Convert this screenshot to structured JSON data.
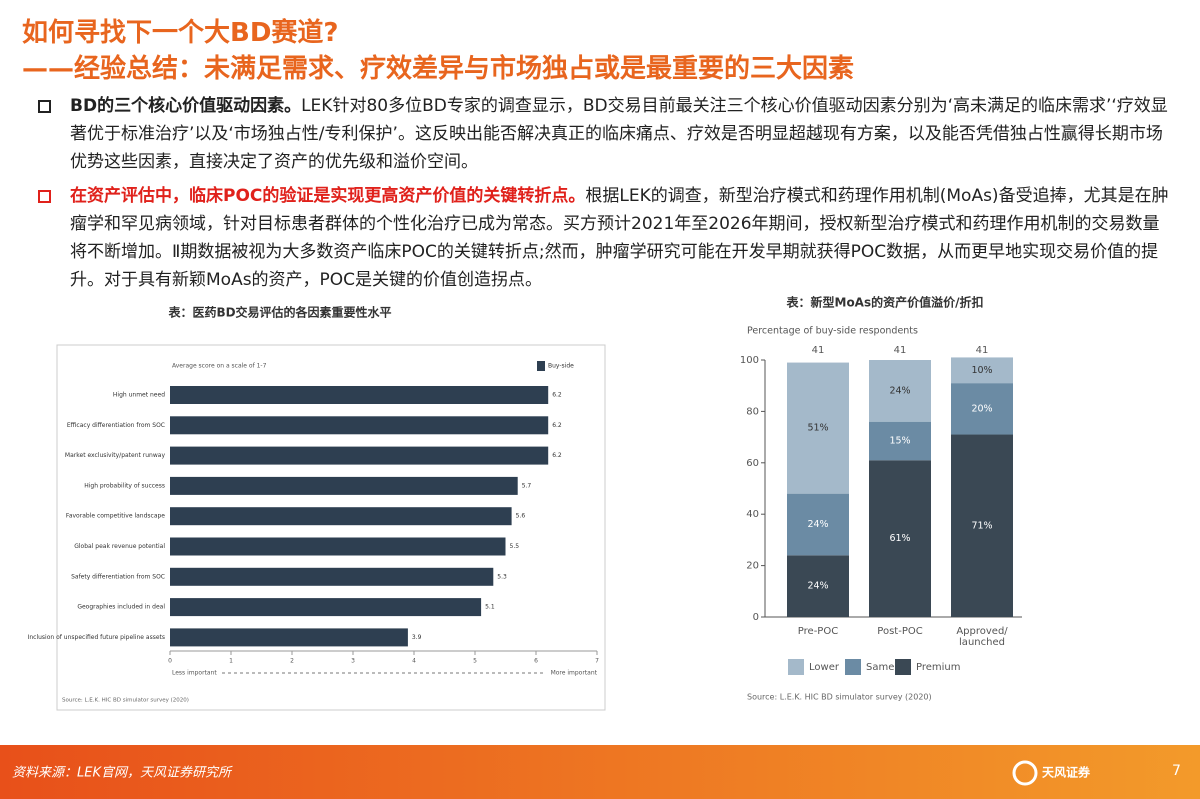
{
  "header": {
    "title": "如何寻找下一个大BD赛道?",
    "subtitle": "——经验总结：未满足需求、疗效差异与市场独占或是最重要的三大因素"
  },
  "bullets": [
    {
      "lead": "BD的三个核心价值驱动因素。",
      "text": "LEK针对80多位BD专家的调查显示，BD交易目前最关注三个核心价值驱动因素分别为‘高未满足的临床需求’‘疗效显著优于标准治疗’以及‘市场独占性/专利保护’。这反映出能否解决真正的临床痛点、疗效是否明显超越现有方案，以及能否凭借独占性赢得长期市场优势这些因素，直接决定了资产的优先级和溢价空间。"
    },
    {
      "lead": "在资产评估中，临床POC的验证是实现更高资产价值的关键转折点。",
      "text": "根据LEK的调查，新型治疗模式和药理作用机制(MoAs)备受追捧，尤其是在肿瘤学和罕见病领域，针对目标患者群体的个性化治疗已成为常态。买方预计2021年至2026年期间，授权新型治疗模式和药理作用机制的交易数量将不断增加。Ⅱ期数据被视为大多数资产临床POC的关键转折点;然而，肿瘤学研究可能在开发早期就获得POC数据，从而更早地实现交易价值的提升。对于具有新颖MoAs的资产，POC是关键的价值创造拐点。"
    }
  ],
  "chart_data": [
    {
      "type": "bar",
      "title": "表：医药BD交易评估的各因素重要性水平",
      "subtitle": "Average score on a scale of 1-7",
      "categories": [
        "High unmet need",
        "Efficacy differentiation from SOC",
        "Market exclusivity/patent runway",
        "High probability of success",
        "Favorable competitive landscape",
        "Global peak revenue potential",
        "Safety differentiation from SOC",
        "Geographies included in deal",
        "Inclusion of unspecified future pipeline assets"
      ],
      "series": [
        {
          "name": "Buy-side",
          "color": "#2e3f51",
          "values": [
            6.2,
            6.2,
            6.2,
            5.7,
            5.6,
            5.5,
            5.3,
            5.1,
            3.9
          ]
        }
      ],
      "xlim": [
        0,
        7
      ],
      "xticks": [
        0,
        1,
        2,
        3,
        4,
        5,
        6,
        7
      ],
      "x_label_left": "Less important",
      "x_label_right": "More important",
      "source": "Source: L.E.K. HIC BD simulator survey (2020)"
    },
    {
      "type": "stacked_bar",
      "title": "表：新型MoAs的资产价值溢价/折扣",
      "y_label": "Percentage of buy-side respondents",
      "categories": [
        "Pre-POC",
        "Post-POC",
        "Approved/ launched"
      ],
      "respondents": [
        41,
        41,
        41
      ],
      "series": [
        {
          "name": "Premium",
          "color": "#3a4854",
          "values": [
            24,
            61,
            71
          ],
          "value_labels": [
            "24%",
            "61%",
            "71%"
          ]
        },
        {
          "name": "Same",
          "color": "#6b8ba4",
          "values": [
            24,
            15,
            20
          ],
          "value_labels": [
            "24%",
            "15%",
            "20%"
          ]
        },
        {
          "name": "Lower",
          "color": "#a4b9ca",
          "values": [
            51,
            24,
            10
          ],
          "value_labels": [
            "51%",
            "24%",
            "10%"
          ]
        }
      ],
      "ylim": [
        0,
        100
      ],
      "yticks": [
        0,
        20,
        40,
        60,
        80,
        100
      ],
      "source": "Source: L.E.K. HIC BD simulator survey (2020)"
    }
  ],
  "footer": {
    "source": "资料来源：LEK官网，天风证券研究所",
    "brand": "天风证券",
    "page_number": 7
  }
}
